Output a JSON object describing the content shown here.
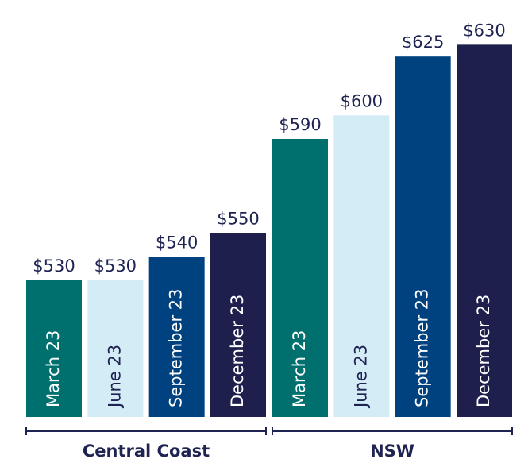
{
  "chart_data": {
    "type": "bar",
    "categories": [
      "Central Coast",
      "NSW"
    ],
    "series": [
      {
        "name": "March 23",
        "color": "#00706f",
        "values": [
          530,
          590
        ],
        "value_labels": [
          "$530",
          "$590"
        ]
      },
      {
        "name": "June 23",
        "color": "#d4ecf5",
        "values": [
          530,
          600
        ],
        "value_labels": [
          "$530",
          "$600"
        ]
      },
      {
        "name": "September 23",
        "color": "#00417f",
        "values": [
          540,
          625
        ],
        "value_labels": [
          "$540",
          "$625"
        ]
      },
      {
        "name": "December 23",
        "color": "#1f1f4d",
        "values": [
          550,
          630
        ],
        "value_labels": [
          "$550",
          "$630"
        ]
      }
    ],
    "ylim": [
      472,
      649
    ]
  }
}
